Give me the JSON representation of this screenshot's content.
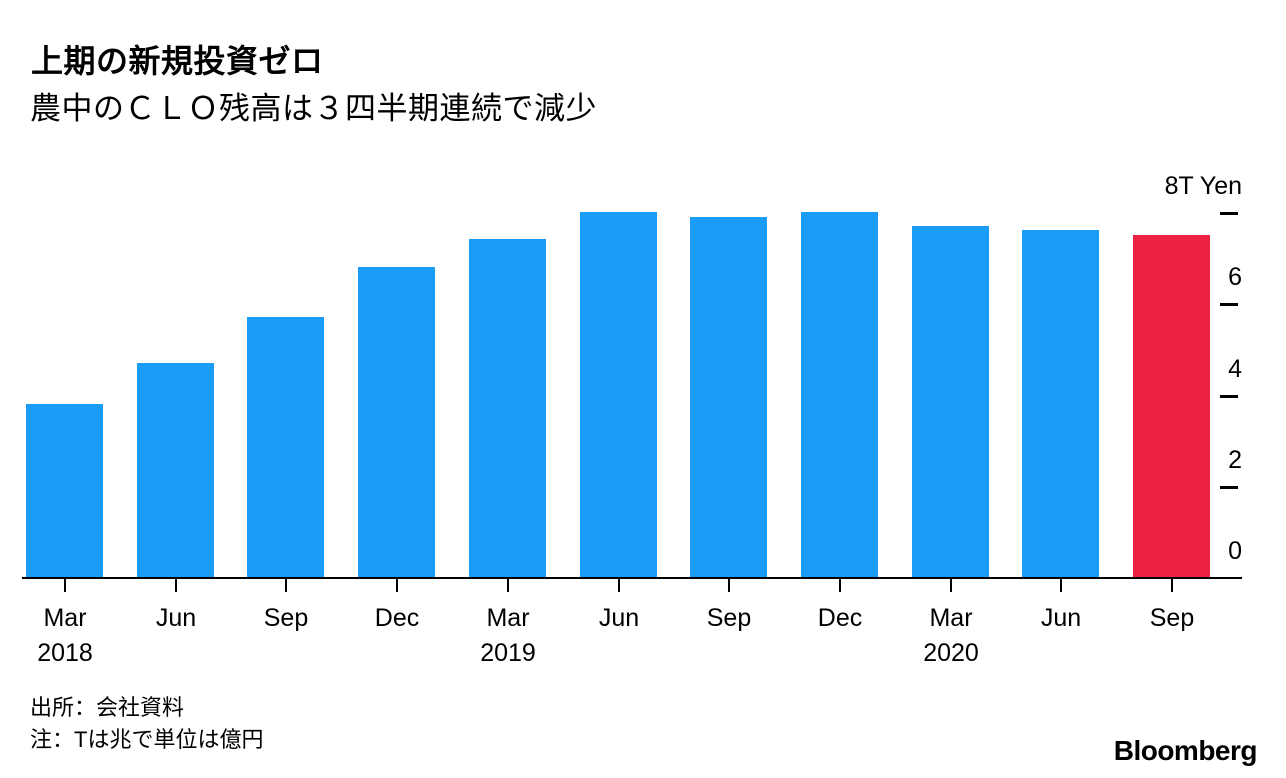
{
  "header": {
    "title": "上期の新規投資ゼロ",
    "subtitle": "農中のＣＬＯ残高は３四半期連続で減少"
  },
  "chart_data": {
    "type": "bar",
    "title": "上期の新規投資ゼロ",
    "subtitle": "農中のＣＬＯ残高は３四半期連続で減少",
    "categories": [
      "Mar 2018",
      "Jun 2018",
      "Sep 2018",
      "Dec 2018",
      "Mar 2019",
      "Jun 2019",
      "Sep 2019",
      "Dec 2019",
      "Mar 2020",
      "Jun 2020",
      "Sep 2020"
    ],
    "x_tick_month_labels": [
      "Mar",
      "Jun",
      "Sep",
      "Dec",
      "Mar",
      "Jun",
      "Sep",
      "Dec",
      "Mar",
      "Jun",
      "Sep"
    ],
    "x_tick_year_labels": [
      "2018",
      "",
      "",
      "",
      "2019",
      "",
      "",
      "",
      "2020",
      "",
      ""
    ],
    "values": [
      3.8,
      4.7,
      5.7,
      6.8,
      7.4,
      8.0,
      7.9,
      8.0,
      7.7,
      7.6,
      7.5
    ],
    "unit": "T Yen",
    "ylim": [
      0,
      8
    ],
    "y_ticks": [
      8,
      6,
      4,
      2,
      0
    ],
    "y_tick_labels": [
      "8T Yen",
      "6",
      "4",
      "2",
      "0"
    ],
    "grid": false,
    "legend": "none",
    "axis_side": "right",
    "bar_color_default": "#1b9df7",
    "bar_color_highlight": "#ed2140",
    "highlight_index": 10
  },
  "footer": {
    "source": "出所：会社資料",
    "note": "注：Tは兆で単位は億円",
    "brand": "Bloomberg"
  }
}
